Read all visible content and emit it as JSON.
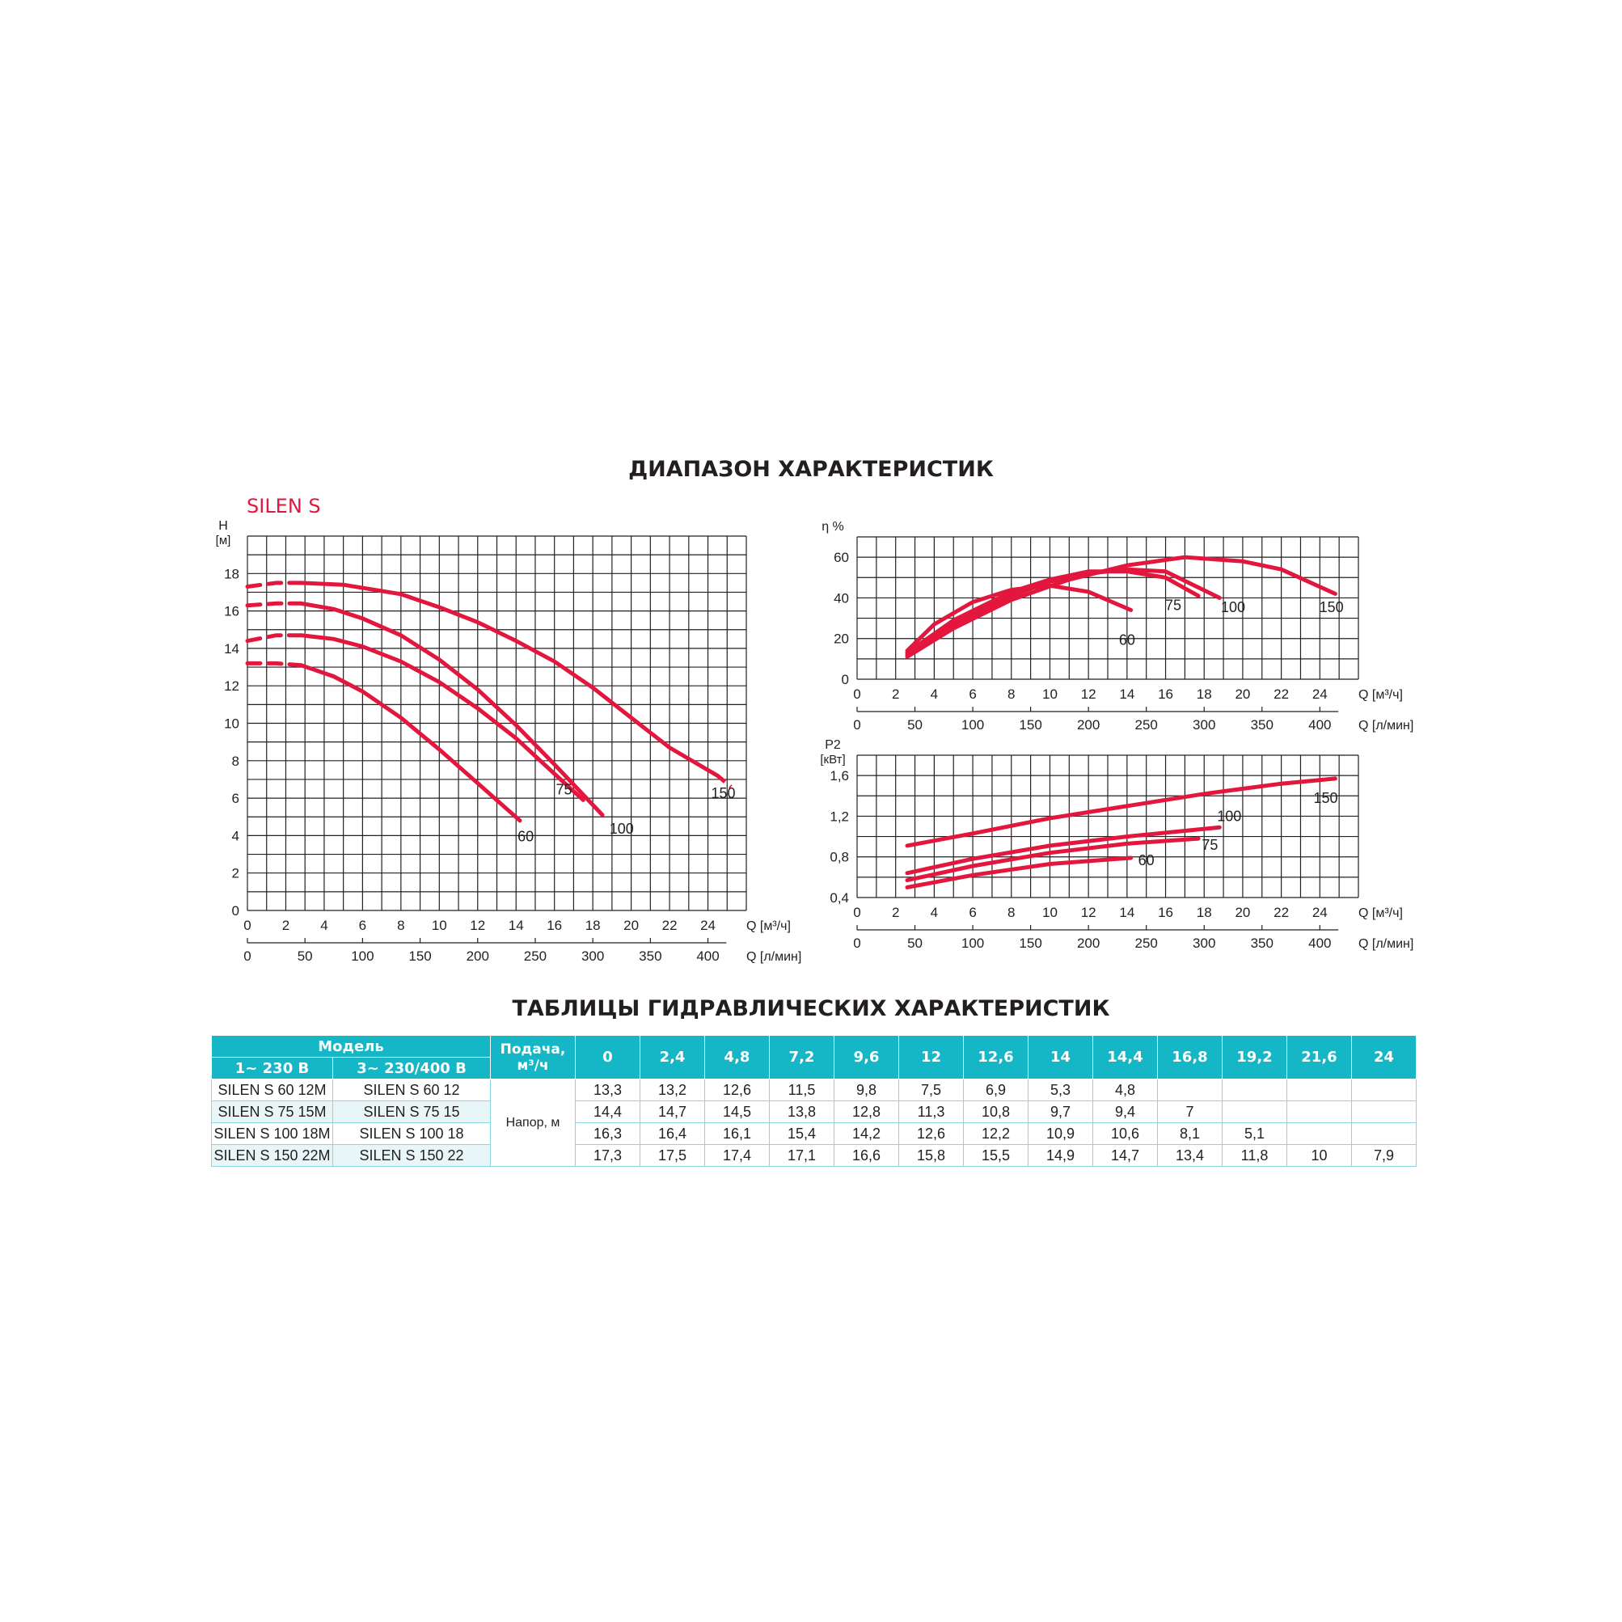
{
  "page": {
    "title_range": "ДИАПАЗОН ХАРАКТЕРИСТИК",
    "brand": "SILEN S",
    "title_tables": "ТАБЛИЦЫ ГИДРАВЛИЧЕСКИХ ХАРАКТЕРИСТИК"
  },
  "colors": {
    "curve": "#e3173e",
    "table_header": "#15b6c6",
    "grid": "#231f20"
  },
  "chart_data": [
    {
      "id": "head",
      "type": "line",
      "ylabel": "H",
      "yunit": "[м]",
      "xlabel": "Q [м³/ч]",
      "x2label": "Q [л/мин]",
      "xlim": [
        0,
        26
      ],
      "ylim": [
        0,
        20
      ],
      "xticks": [
        "0",
        "2",
        "4",
        "6",
        "8",
        "10",
        "12",
        "14",
        "16",
        "18",
        "20",
        "22",
        "24"
      ],
      "yticks": [
        "0",
        "2",
        "4",
        "6",
        "8",
        "10",
        "12",
        "14",
        "16",
        "18"
      ],
      "x2ticks": [
        "0",
        "50",
        "100",
        "150",
        "200",
        "250",
        "300",
        "350",
        "400"
      ],
      "dashed_ends": "dashed segments at the low-flow start of each curve and at the high-flow end of 150",
      "series": [
        {
          "name": "60",
          "x": [
            0,
            1.5,
            2.8,
            4.5,
            6,
            8,
            10,
            12,
            14.2
          ],
          "y": [
            13.2,
            13.2,
            13.1,
            12.5,
            11.7,
            10.3,
            8.6,
            6.8,
            4.8
          ]
        },
        {
          "name": "75",
          "x": [
            0,
            1.5,
            2.8,
            4.5,
            6,
            8,
            10,
            12,
            14,
            16,
            17.5
          ],
          "y": [
            14.4,
            14.7,
            14.7,
            14.5,
            14.1,
            13.3,
            12.2,
            10.8,
            9.2,
            7.3,
            5.9
          ]
        },
        {
          "name": "100",
          "x": [
            0,
            1.5,
            2.8,
            4.5,
            6,
            8,
            10,
            12,
            14,
            16,
            18.5
          ],
          "y": [
            16.3,
            16.4,
            16.4,
            16.1,
            15.6,
            14.7,
            13.4,
            11.8,
            9.9,
            7.8,
            5.1
          ]
        },
        {
          "name": "150",
          "x": [
            0,
            1.5,
            2.8,
            5,
            8,
            10,
            12,
            14,
            16,
            18,
            20,
            22,
            24.5
          ],
          "y": [
            17.3,
            17.5,
            17.5,
            17.4,
            16.9,
            16.2,
            15.4,
            14.4,
            13.3,
            11.9,
            10.3,
            8.7,
            7.2
          ]
        }
      ]
    },
    {
      "id": "efficiency",
      "type": "line",
      "ylabel": "η %",
      "xlabel": "Q [м³/ч]",
      "x2label": "Q [л/мин]",
      "xlim": [
        0,
        26
      ],
      "ylim": [
        0,
        70
      ],
      "xticks": [
        "0",
        "2",
        "4",
        "6",
        "8",
        "10",
        "12",
        "14",
        "16",
        "18",
        "20",
        "22",
        "24"
      ],
      "yticks": [
        "0",
        "20",
        "40",
        "60"
      ],
      "x2ticks": [
        "0",
        "50",
        "100",
        "150",
        "200",
        "250",
        "300",
        "350",
        "400"
      ],
      "series": [
        {
          "name": "60",
          "x": [
            2.6,
            4,
            6,
            8,
            10,
            12,
            14.2
          ],
          "y": [
            14,
            27,
            38,
            44,
            46,
            43,
            34
          ]
        },
        {
          "name": "75",
          "x": [
            2.6,
            5,
            8,
            10,
            12,
            14,
            16,
            17.7
          ],
          "y": [
            13,
            29,
            43,
            49,
            53,
            53,
            50,
            41
          ]
        },
        {
          "name": "100",
          "x": [
            2.6,
            5,
            8,
            10,
            12,
            14,
            16,
            18.8
          ],
          "y": [
            12,
            27,
            41,
            48,
            52,
            54,
            53,
            40
          ]
        },
        {
          "name": "150",
          "x": [
            2.6,
            5,
            8,
            11,
            14,
            17,
            20,
            22,
            24.8
          ],
          "y": [
            11,
            25,
            39,
            49,
            56,
            60,
            58,
            54,
            42
          ]
        }
      ]
    },
    {
      "id": "power",
      "type": "line",
      "ylabel": "P2",
      "yunit": "[кВт]",
      "xlabel": "Q [м³/ч]",
      "x2label": "Q [л/мин]",
      "xlim": [
        0,
        26
      ],
      "ylim": [
        0.4,
        1.8
      ],
      "xticks": [
        "0",
        "2",
        "4",
        "6",
        "8",
        "10",
        "12",
        "14",
        "16",
        "18",
        "20",
        "22",
        "24"
      ],
      "yticks": [
        "0,4",
        "0,8",
        "1,2",
        "1,6"
      ],
      "x2ticks": [
        "0",
        "50",
        "100",
        "150",
        "200",
        "250",
        "300",
        "350",
        "400"
      ],
      "series": [
        {
          "name": "60",
          "x": [
            2.6,
            6,
            10,
            14.2
          ],
          "y": [
            0.5,
            0.62,
            0.73,
            0.79
          ]
        },
        {
          "name": "75",
          "x": [
            2.6,
            6,
            10,
            14,
            17.7
          ],
          "y": [
            0.57,
            0.71,
            0.84,
            0.93,
            0.98
          ]
        },
        {
          "name": "100",
          "x": [
            2.6,
            6,
            10,
            14,
            18.8
          ],
          "y": [
            0.64,
            0.78,
            0.91,
            1.0,
            1.09
          ]
        },
        {
          "name": "150",
          "x": [
            2.6,
            6,
            10,
            14,
            18,
            22,
            24.8
          ],
          "y": [
            0.91,
            1.03,
            1.18,
            1.3,
            1.42,
            1.52,
            1.57
          ]
        }
      ]
    },
    {
      "id": "hydraulic-table",
      "type": "table",
      "columns": [
        "0",
        "2,4",
        "4,8",
        "7,2",
        "9,6",
        "12",
        "12,6",
        "14",
        "14,4",
        "16,8",
        "19,2",
        "21,6",
        "24"
      ],
      "rows": [
        {
          "model1": "SILEN S 60 12M",
          "model3": "SILEN S 60 12",
          "values": [
            "13,3",
            "13,2",
            "12,6",
            "11,5",
            "9,8",
            "7,5",
            "6,9",
            "5,3",
            "4,8",
            "",
            "",
            "",
            ""
          ]
        },
        {
          "model1": "SILEN S 75 15M",
          "model3": "SILEN S 75 15",
          "values": [
            "14,4",
            "14,7",
            "14,5",
            "13,8",
            "12,8",
            "11,3",
            "10,8",
            "9,7",
            "9,4",
            "7",
            "",
            "",
            ""
          ]
        },
        {
          "model1": "SILEN S 100 18M",
          "model3": "SILEN S 100 18",
          "values": [
            "16,3",
            "16,4",
            "16,1",
            "15,4",
            "14,2",
            "12,6",
            "12,2",
            "10,9",
            "10,6",
            "8,1",
            "5,1",
            "",
            ""
          ]
        },
        {
          "model1": "SILEN S 150 22M",
          "model3": "SILEN S 150 22",
          "values": [
            "17,3",
            "17,5",
            "17,4",
            "17,1",
            "16,6",
            "15,8",
            "15,5",
            "14,9",
            "14,7",
            "13,4",
            "11,8",
            "10",
            "7,9"
          ]
        }
      ]
    }
  ],
  "table": {
    "model_header": "Модель",
    "col_1ph": "1~ 230 В",
    "col_3ph": "3~ 230/400 В",
    "supply_header": "Подача, м³/ч",
    "head_label": "Напор, м"
  }
}
